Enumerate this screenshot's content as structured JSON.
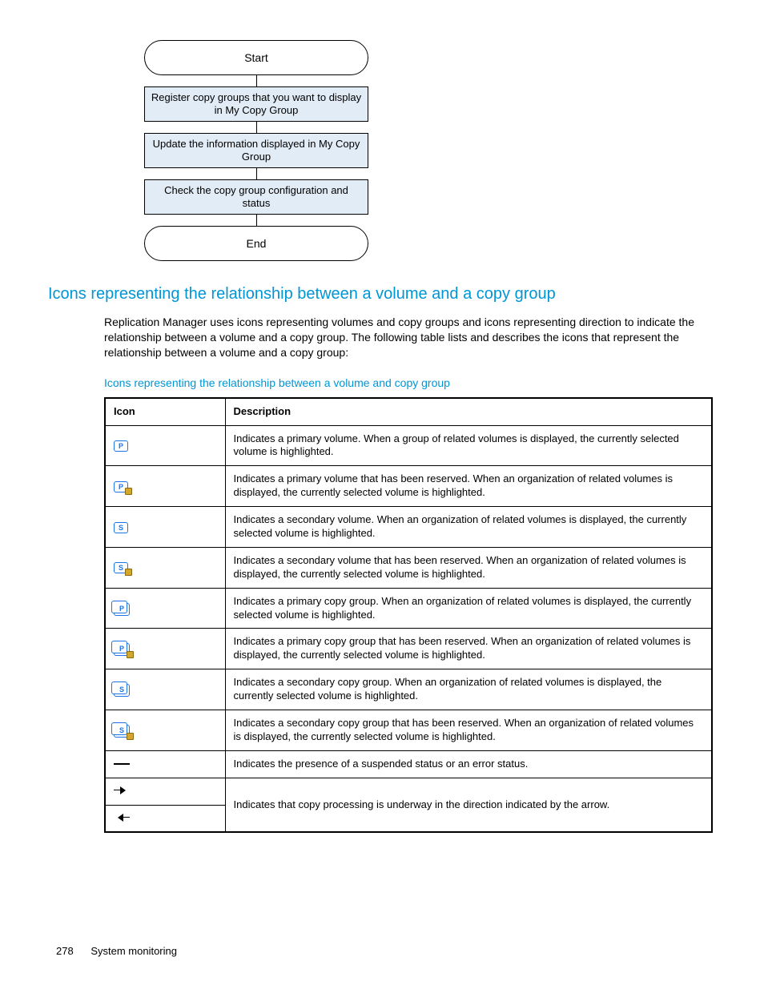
{
  "colors": {
    "heading": "#0096d6",
    "flow_fill": "#e2ecf6",
    "link": "#0096d6",
    "text": "#000000"
  },
  "flowchart": {
    "start": "Start",
    "step1": "Register copy groups that you want to display in My Copy Group",
    "step2": "Update the information displayed in My Copy Group",
    "step3": "Check the copy group configuration and status",
    "end": "End"
  },
  "heading": "Icons representing the relationship between a volume and a copy group",
  "paragraph": "Replication Manager uses icons representing volumes and copy groups and icons representing direction to indicate the relationship between a volume and a copy group. The following table lists and describes the icons that represent the relationship between a volume and a copy group:",
  "table_caption": "Icons representing the relationship between a volume and copy group",
  "table": {
    "headers": {
      "icon": "Icon",
      "desc": "Description"
    },
    "rows": [
      {
        "icon_name": "primary-volume-icon",
        "letter": "P",
        "group": false,
        "locked": false,
        "desc": "Indicates a primary volume. When a group of related volumes is displayed, the currently selected volume is highlighted."
      },
      {
        "icon_name": "primary-volume-reserved-icon",
        "letter": "P",
        "group": false,
        "locked": true,
        "desc": "Indicates a primary volume that has been reserved. When an organization of related volumes is displayed, the currently selected volume is highlighted."
      },
      {
        "icon_name": "secondary-volume-icon",
        "letter": "S",
        "group": false,
        "locked": false,
        "desc": "Indicates a secondary volume. When an organization of related volumes is displayed, the currently selected volume is highlighted."
      },
      {
        "icon_name": "secondary-volume-reserved-icon",
        "letter": "S",
        "group": false,
        "locked": true,
        "desc": "Indicates a secondary volume that has been reserved. When an organization of related volumes is displayed, the currently selected volume is highlighted."
      },
      {
        "icon_name": "primary-copy-group-icon",
        "letter": "P",
        "group": true,
        "locked": false,
        "desc": "Indicates a primary copy group. When an organization of related volumes is displayed, the currently selected volume is highlighted."
      },
      {
        "icon_name": "primary-copy-group-reserved-icon",
        "letter": "P",
        "group": true,
        "locked": true,
        "desc": "Indicates a primary copy group that has been reserved. When an organization of related volumes is displayed, the currently selected volume is highlighted."
      },
      {
        "icon_name": "secondary-copy-group-icon",
        "letter": "S",
        "group": true,
        "locked": false,
        "desc": "Indicates a secondary copy group. When an organization of related volumes is displayed, the currently selected volume is highlighted."
      },
      {
        "icon_name": "secondary-copy-group-reserved-icon",
        "letter": "S",
        "group": true,
        "locked": true,
        "desc": "Indicates a secondary copy group that has been reserved. When an organization of related volumes is displayed, the currently selected volume is highlighted."
      },
      {
        "icon_name": "dash-status-icon",
        "special": "dash",
        "desc": "Indicates the presence of a suspended status or an error status."
      },
      {
        "icon_name": "arrow-right-icon",
        "special": "arrow-r",
        "desc": "Indicates that copy processing is underway in the direction indicated by the arrow.",
        "rowspan_desc": 2
      },
      {
        "icon_name": "arrow-left-icon",
        "special": "arrow-l",
        "skip_desc": true
      }
    ]
  },
  "footer": {
    "page": "278",
    "section": "System monitoring"
  }
}
